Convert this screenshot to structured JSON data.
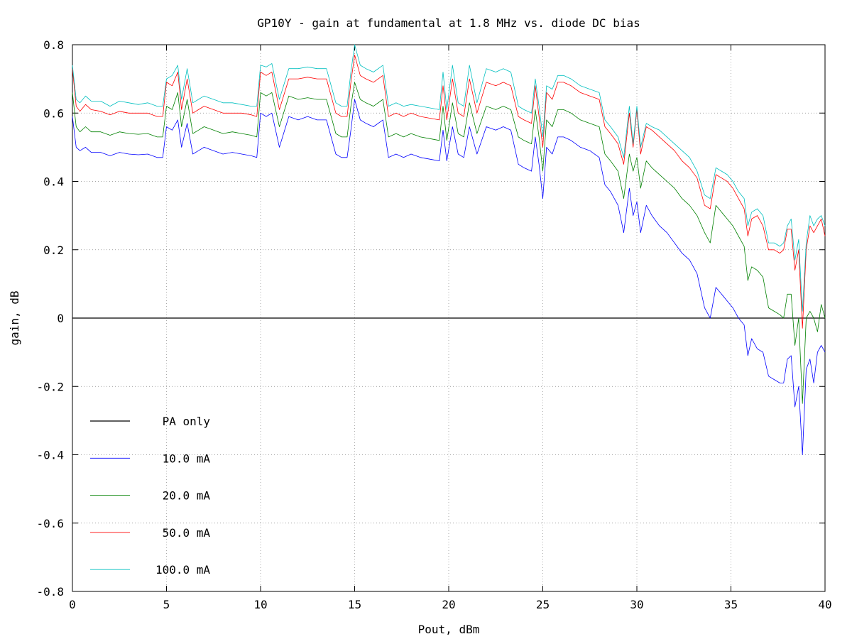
{
  "chart_data": {
    "type": "line",
    "title": "GP10Y - gain at fundamental at 1.8 MHz vs. diode DC bias",
    "xlabel": "Pout, dBm",
    "ylabel": "gain, dB",
    "xlim": [
      0,
      40
    ],
    "ylim": [
      -0.8,
      0.8
    ],
    "x_ticks": [
      0,
      5,
      10,
      15,
      20,
      25,
      30,
      35,
      40
    ],
    "y_ticks": [
      -0.8,
      -0.6,
      -0.4,
      -0.2,
      0,
      0.2,
      0.4,
      0.6,
      0.8
    ],
    "x_tick_labels": [
      "0",
      "5",
      "10",
      "15",
      "20",
      "25",
      "30",
      "35",
      "40"
    ],
    "y_tick_labels": [
      "-0.8",
      "-0.6",
      "-0.4",
      "-0.2",
      "0",
      "0.2",
      "0.4",
      "0.6",
      "0.8"
    ],
    "grid": true,
    "legend_position": "bottom-left",
    "series": [
      {
        "name": "PA only",
        "color": "#000000",
        "x": [
          0,
          40
        ],
        "y": [
          0,
          0
        ]
      },
      {
        "name": "10.0 mA",
        "color": "#0000ff",
        "x": [
          0,
          0.2,
          0.4,
          0.7,
          1,
          1.5,
          2,
          2.5,
          3,
          3.5,
          4,
          4.5,
          4.8,
          5,
          5.3,
          5.6,
          5.8,
          6.1,
          6.4,
          6.7,
          7,
          7.5,
          8,
          8.5,
          9,
          9.5,
          9.8,
          10,
          10.3,
          10.6,
          11,
          11.5,
          12,
          12.5,
          13,
          13.5,
          14,
          14.3,
          14.6,
          14.8,
          15,
          15.3,
          15.6,
          16,
          16.5,
          16.8,
          17.2,
          17.6,
          18,
          18.5,
          19,
          19.5,
          19.7,
          19.9,
          20.2,
          20.5,
          20.8,
          21.1,
          21.5,
          22,
          22.5,
          22.9,
          23.3,
          23.7,
          24,
          24.4,
          24.6,
          24.8,
          25,
          25.2,
          25.5,
          25.8,
          26.1,
          26.5,
          27,
          27.5,
          28,
          28.3,
          28.6,
          29,
          29.3,
          29.6,
          29.8,
          30,
          30.2,
          30.5,
          30.8,
          31.2,
          31.6,
          32,
          32.4,
          32.8,
          33.2,
          33.6,
          33.9,
          34.2,
          34.5,
          34.8,
          35.1,
          35.4,
          35.7,
          35.9,
          36.1,
          36.4,
          36.7,
          37,
          37.3,
          37.6,
          37.8,
          38,
          38.2,
          38.4,
          38.6,
          38.8,
          39,
          39.2,
          39.4,
          39.6,
          39.8,
          40
        ],
        "y": [
          0.59,
          0.5,
          0.49,
          0.5,
          0.485,
          0.485,
          0.475,
          0.485,
          0.48,
          0.478,
          0.48,
          0.47,
          0.47,
          0.56,
          0.55,
          0.58,
          0.5,
          0.57,
          0.48,
          0.49,
          0.5,
          0.49,
          0.48,
          0.485,
          0.48,
          0.475,
          0.47,
          0.6,
          0.59,
          0.6,
          0.5,
          0.59,
          0.58,
          0.59,
          0.58,
          0.58,
          0.48,
          0.47,
          0.47,
          0.55,
          0.64,
          0.58,
          0.57,
          0.56,
          0.58,
          0.47,
          0.48,
          0.47,
          0.48,
          0.47,
          0.465,
          0.46,
          0.55,
          0.46,
          0.56,
          0.48,
          0.47,
          0.56,
          0.48,
          0.56,
          0.55,
          0.56,
          0.55,
          0.45,
          0.44,
          0.43,
          0.53,
          0.45,
          0.35,
          0.5,
          0.48,
          0.53,
          0.53,
          0.52,
          0.5,
          0.49,
          0.47,
          0.39,
          0.37,
          0.33,
          0.25,
          0.38,
          0.3,
          0.34,
          0.25,
          0.33,
          0.3,
          0.27,
          0.25,
          0.22,
          0.19,
          0.17,
          0.13,
          0.03,
          0.0,
          0.09,
          0.07,
          0.05,
          0.03,
          0.0,
          -0.02,
          -0.11,
          -0.06,
          -0.09,
          -0.1,
          -0.17,
          -0.18,
          -0.19,
          -0.19,
          -0.12,
          -0.11,
          -0.26,
          -0.2,
          -0.4,
          -0.15,
          -0.12,
          -0.19,
          -0.1,
          -0.08,
          -0.1
        ]
      },
      {
        "name": "20.0 mA",
        "color": "#008000",
        "x": [
          0,
          0.2,
          0.4,
          0.7,
          1,
          1.5,
          2,
          2.5,
          3,
          3.5,
          4,
          4.5,
          4.8,
          5,
          5.3,
          5.6,
          5.8,
          6.1,
          6.4,
          6.7,
          7,
          7.5,
          8,
          8.5,
          9,
          9.5,
          9.8,
          10,
          10.3,
          10.6,
          11,
          11.5,
          12,
          12.5,
          13,
          13.5,
          14,
          14.3,
          14.6,
          14.8,
          15,
          15.3,
          15.6,
          16,
          16.5,
          16.8,
          17.2,
          17.6,
          18,
          18.5,
          19,
          19.5,
          19.7,
          19.9,
          20.2,
          20.5,
          20.8,
          21.1,
          21.5,
          22,
          22.5,
          22.9,
          23.3,
          23.7,
          24,
          24.4,
          24.6,
          24.8,
          25,
          25.2,
          25.5,
          25.8,
          26.1,
          26.5,
          27,
          27.5,
          28,
          28.3,
          28.6,
          29,
          29.3,
          29.6,
          29.8,
          30,
          30.2,
          30.5,
          30.8,
          31.2,
          31.6,
          32,
          32.4,
          32.8,
          33.2,
          33.6,
          33.9,
          34.2,
          34.5,
          34.8,
          35.1,
          35.4,
          35.7,
          35.9,
          36.1,
          36.4,
          36.7,
          37,
          37.3,
          37.6,
          37.8,
          38,
          38.2,
          38.4,
          38.6,
          38.8,
          39,
          39.2,
          39.4,
          39.6,
          39.8,
          40
        ],
        "y": [
          0.66,
          0.56,
          0.545,
          0.56,
          0.545,
          0.545,
          0.535,
          0.545,
          0.54,
          0.538,
          0.54,
          0.53,
          0.53,
          0.62,
          0.61,
          0.66,
          0.56,
          0.64,
          0.54,
          0.55,
          0.56,
          0.55,
          0.54,
          0.545,
          0.54,
          0.535,
          0.53,
          0.66,
          0.65,
          0.66,
          0.56,
          0.65,
          0.64,
          0.645,
          0.64,
          0.64,
          0.54,
          0.53,
          0.53,
          0.62,
          0.69,
          0.64,
          0.63,
          0.62,
          0.64,
          0.53,
          0.54,
          0.53,
          0.54,
          0.53,
          0.525,
          0.52,
          0.62,
          0.52,
          0.63,
          0.54,
          0.53,
          0.63,
          0.54,
          0.62,
          0.61,
          0.62,
          0.61,
          0.53,
          0.52,
          0.51,
          0.61,
          0.53,
          0.43,
          0.58,
          0.56,
          0.61,
          0.61,
          0.6,
          0.58,
          0.57,
          0.56,
          0.48,
          0.46,
          0.43,
          0.35,
          0.48,
          0.43,
          0.47,
          0.38,
          0.46,
          0.44,
          0.42,
          0.4,
          0.38,
          0.35,
          0.33,
          0.3,
          0.25,
          0.22,
          0.33,
          0.31,
          0.29,
          0.27,
          0.24,
          0.21,
          0.11,
          0.15,
          0.14,
          0.12,
          0.03,
          0.02,
          0.01,
          0.0,
          0.07,
          0.07,
          -0.08,
          0.0,
          -0.25,
          0.0,
          0.02,
          0.0,
          -0.04,
          0.04,
          0.0
        ]
      },
      {
        "name": "50.0 mA",
        "color": "#ff0000",
        "x": [
          0,
          0.2,
          0.4,
          0.7,
          1,
          1.5,
          2,
          2.5,
          3,
          3.5,
          4,
          4.5,
          4.8,
          5,
          5.3,
          5.6,
          5.8,
          6.1,
          6.4,
          6.7,
          7,
          7.5,
          8,
          8.5,
          9,
          9.5,
          9.8,
          10,
          10.3,
          10.6,
          11,
          11.5,
          12,
          12.5,
          13,
          13.5,
          14,
          14.3,
          14.6,
          14.8,
          15,
          15.3,
          15.6,
          16,
          16.5,
          16.8,
          17.2,
          17.6,
          18,
          18.5,
          19,
          19.5,
          19.7,
          19.9,
          20.2,
          20.5,
          20.8,
          21.1,
          21.5,
          22,
          22.5,
          22.9,
          23.3,
          23.7,
          24,
          24.4,
          24.6,
          24.8,
          25,
          25.2,
          25.5,
          25.8,
          26.1,
          26.5,
          27,
          27.5,
          28,
          28.3,
          28.6,
          29,
          29.3,
          29.6,
          29.8,
          30,
          30.2,
          30.5,
          30.8,
          31.2,
          31.6,
          32,
          32.4,
          32.8,
          33.2,
          33.6,
          33.9,
          34.2,
          34.5,
          34.8,
          35.1,
          35.4,
          35.7,
          35.9,
          36.1,
          36.4,
          36.7,
          37,
          37.3,
          37.6,
          37.8,
          38,
          38.2,
          38.4,
          38.6,
          38.8,
          39,
          39.2,
          39.4,
          39.6,
          39.8,
          40
        ],
        "y": [
          0.73,
          0.62,
          0.605,
          0.625,
          0.61,
          0.605,
          0.595,
          0.605,
          0.6,
          0.6,
          0.6,
          0.59,
          0.59,
          0.69,
          0.68,
          0.72,
          0.61,
          0.7,
          0.6,
          0.61,
          0.62,
          0.61,
          0.6,
          0.6,
          0.6,
          0.595,
          0.59,
          0.72,
          0.71,
          0.72,
          0.61,
          0.7,
          0.7,
          0.705,
          0.7,
          0.7,
          0.6,
          0.59,
          0.59,
          0.69,
          0.77,
          0.71,
          0.7,
          0.69,
          0.71,
          0.59,
          0.6,
          0.59,
          0.6,
          0.59,
          0.585,
          0.58,
          0.68,
          0.58,
          0.7,
          0.6,
          0.59,
          0.7,
          0.6,
          0.69,
          0.68,
          0.69,
          0.68,
          0.59,
          0.58,
          0.57,
          0.68,
          0.59,
          0.5,
          0.66,
          0.64,
          0.69,
          0.69,
          0.68,
          0.66,
          0.65,
          0.64,
          0.56,
          0.54,
          0.51,
          0.45,
          0.6,
          0.5,
          0.61,
          0.48,
          0.56,
          0.55,
          0.53,
          0.51,
          0.49,
          0.46,
          0.44,
          0.41,
          0.33,
          0.32,
          0.42,
          0.41,
          0.4,
          0.38,
          0.35,
          0.32,
          0.24,
          0.29,
          0.3,
          0.27,
          0.2,
          0.2,
          0.19,
          0.2,
          0.26,
          0.26,
          0.14,
          0.2,
          -0.03,
          0.2,
          0.27,
          0.25,
          0.27,
          0.29,
          0.24
        ]
      },
      {
        "name": "100.0 mA",
        "color": "#00bfbf",
        "x": [
          0,
          0.2,
          0.4,
          0.7,
          1,
          1.5,
          2,
          2.5,
          3,
          3.5,
          4,
          4.5,
          4.8,
          5,
          5.3,
          5.6,
          5.8,
          6.1,
          6.4,
          6.7,
          7,
          7.5,
          8,
          8.5,
          9,
          9.5,
          9.8,
          10,
          10.3,
          10.6,
          11,
          11.5,
          12,
          12.5,
          13,
          13.5,
          14,
          14.3,
          14.6,
          14.8,
          15,
          15.3,
          15.6,
          16,
          16.5,
          16.8,
          17.2,
          17.6,
          18,
          18.5,
          19,
          19.5,
          19.7,
          19.9,
          20.2,
          20.5,
          20.8,
          21.1,
          21.5,
          22,
          22.5,
          22.9,
          23.3,
          23.7,
          24,
          24.4,
          24.6,
          24.8,
          25,
          25.2,
          25.5,
          25.8,
          26.1,
          26.5,
          27,
          27.5,
          28,
          28.3,
          28.6,
          29,
          29.3,
          29.6,
          29.8,
          30,
          30.2,
          30.5,
          30.8,
          31.2,
          31.6,
          32,
          32.4,
          32.8,
          33.2,
          33.6,
          33.9,
          34.2,
          34.5,
          34.8,
          35.1,
          35.4,
          35.7,
          35.9,
          36.1,
          36.4,
          36.7,
          37,
          37.3,
          37.6,
          37.8,
          38,
          38.2,
          38.4,
          38.6,
          38.8,
          39,
          39.2,
          39.4,
          39.6,
          39.8,
          40
        ],
        "y": [
          0.74,
          0.64,
          0.63,
          0.65,
          0.635,
          0.635,
          0.62,
          0.635,
          0.63,
          0.625,
          0.63,
          0.62,
          0.62,
          0.7,
          0.71,
          0.74,
          0.64,
          0.73,
          0.63,
          0.64,
          0.65,
          0.64,
          0.63,
          0.63,
          0.625,
          0.62,
          0.62,
          0.74,
          0.735,
          0.745,
          0.64,
          0.73,
          0.73,
          0.735,
          0.73,
          0.73,
          0.63,
          0.62,
          0.62,
          0.72,
          0.8,
          0.74,
          0.73,
          0.72,
          0.74,
          0.62,
          0.63,
          0.62,
          0.625,
          0.62,
          0.615,
          0.61,
          0.72,
          0.61,
          0.74,
          0.63,
          0.62,
          0.74,
          0.63,
          0.73,
          0.72,
          0.73,
          0.72,
          0.62,
          0.61,
          0.6,
          0.7,
          0.62,
          0.53,
          0.68,
          0.67,
          0.71,
          0.71,
          0.7,
          0.68,
          0.67,
          0.66,
          0.58,
          0.56,
          0.53,
          0.47,
          0.62,
          0.51,
          0.62,
          0.5,
          0.57,
          0.56,
          0.55,
          0.53,
          0.51,
          0.49,
          0.47,
          0.43,
          0.36,
          0.35,
          0.44,
          0.43,
          0.42,
          0.4,
          0.37,
          0.35,
          0.27,
          0.31,
          0.32,
          0.3,
          0.22,
          0.22,
          0.21,
          0.22,
          0.27,
          0.29,
          0.17,
          0.23,
          0.02,
          0.22,
          0.3,
          0.27,
          0.29,
          0.3,
          0.27
        ]
      }
    ]
  }
}
